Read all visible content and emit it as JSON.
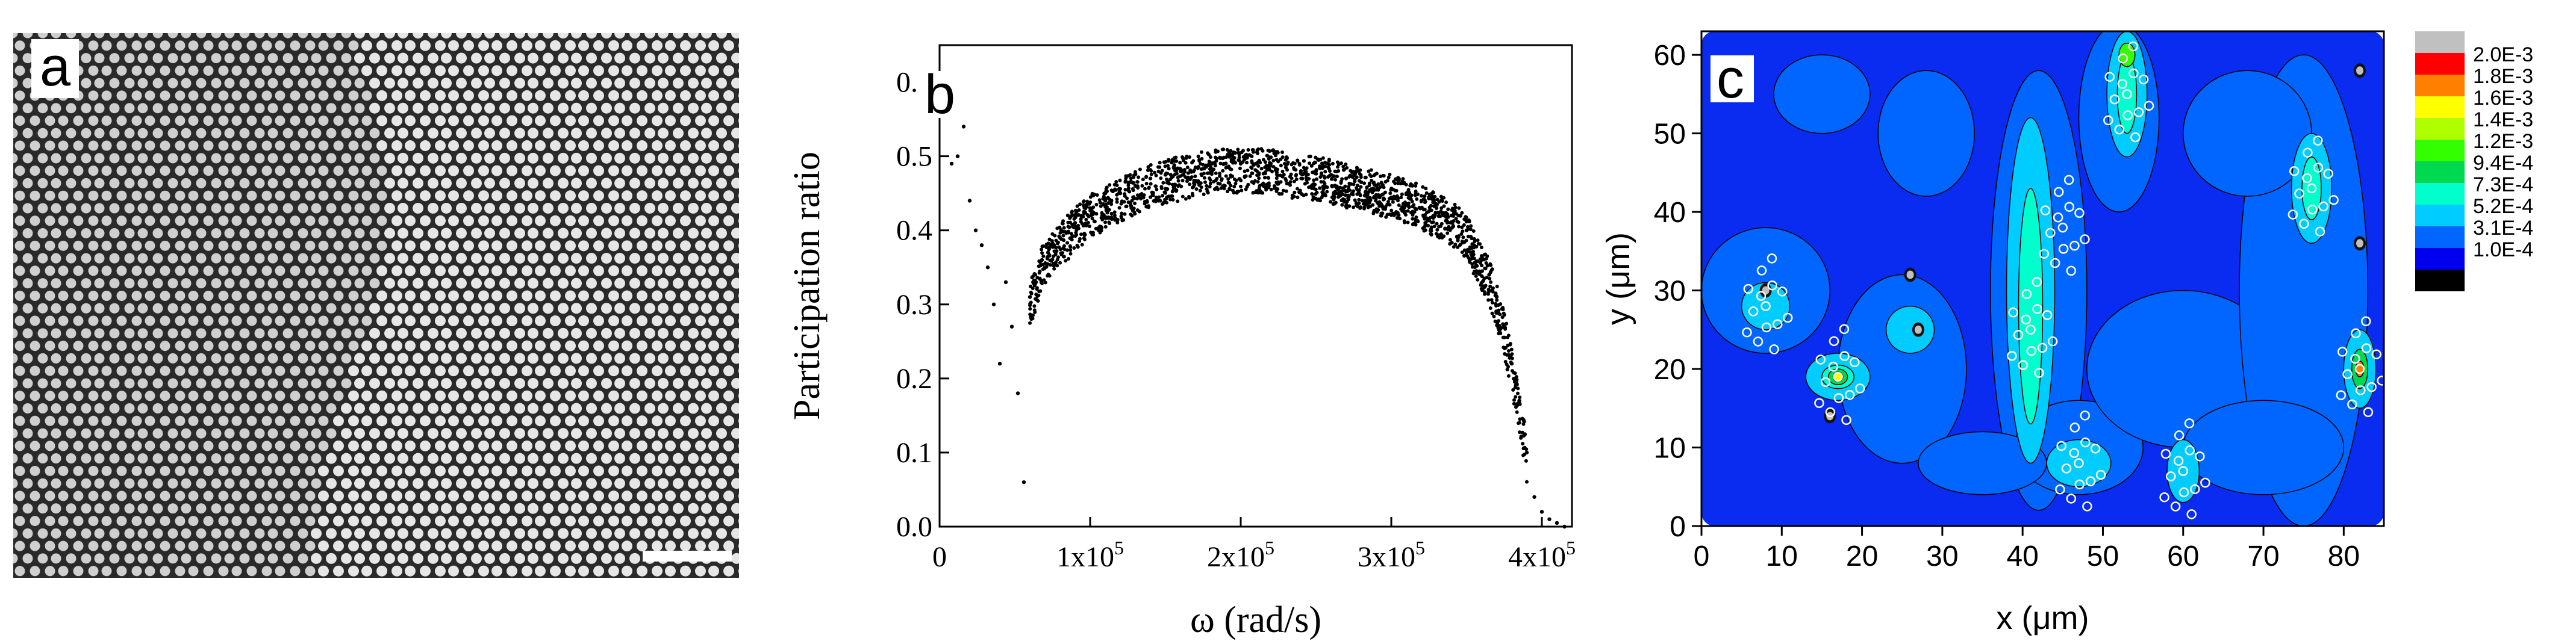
{
  "figure": {
    "panel_a": {
      "letter": "a",
      "image": "colloidal-crystal-micrograph"
    },
    "panel_b": {
      "letter": "b"
    },
    "panel_c": {
      "letter": "c"
    }
  },
  "colors": {
    "axis": "#000000",
    "points": "#000000",
    "contour_background": "#0a2bf0"
  },
  "chart_data": [
    {
      "type": "scatter",
      "panel": "b",
      "xlabel": "ω (rad/s)",
      "ylabel": "Participation ratio",
      "xlim": [
        0,
        420000
      ],
      "ylim": [
        0,
        0.65
      ],
      "xticks": [
        {
          "value": 0,
          "label": "0"
        },
        {
          "value": 100000,
          "label": "1x10",
          "sup": "5"
        },
        {
          "value": 200000,
          "label": "2x10",
          "sup": "5"
        },
        {
          "value": 300000,
          "label": "3x10",
          "sup": "5"
        },
        {
          "value": 400000,
          "label": "4x10",
          "sup": "5"
        }
      ],
      "yticks": [
        {
          "value": 0.0,
          "label": "0.0"
        },
        {
          "value": 0.1,
          "label": "0.1"
        },
        {
          "value": 0.2,
          "label": "0.2"
        },
        {
          "value": 0.3,
          "label": "0.3"
        },
        {
          "value": 0.4,
          "label": "0.4"
        },
        {
          "value": 0.5,
          "label": "0.5"
        },
        {
          "value": 0.6,
          "label": "0.6"
        }
      ],
      "grid": false,
      "series": [
        {
          "marker": "dot",
          "x": [
            8000,
            12000,
            16000,
            20000,
            24000,
            28000,
            32000,
            36000,
            40000,
            44000,
            48000,
            52000,
            56000,
            60000,
            64000,
            68000,
            72000,
            76000,
            80000,
            90000,
            100000,
            110000,
            120000,
            130000,
            140000,
            150000,
            160000,
            170000,
            180000,
            190000,
            200000,
            210000,
            220000,
            230000,
            240000,
            250000,
            260000,
            270000,
            280000,
            290000,
            300000,
            310000,
            320000,
            330000,
            340000,
            350000,
            355000,
            360000,
            365000,
            370000,
            375000,
            380000,
            385000,
            390000,
            395000,
            400000,
            405000,
            410000,
            415000
          ],
          "y": [
            0.49,
            0.5,
            0.54,
            0.44,
            0.4,
            0.38,
            0.35,
            0.3,
            0.22,
            0.33,
            0.27,
            0.18,
            0.06,
            0.31,
            0.33,
            0.36,
            0.37,
            0.38,
            0.39,
            0.41,
            0.43,
            0.44,
            0.45,
            0.46,
            0.47,
            0.475,
            0.48,
            0.485,
            0.49,
            0.49,
            0.49,
            0.49,
            0.49,
            0.485,
            0.48,
            0.48,
            0.475,
            0.47,
            0.465,
            0.46,
            0.455,
            0.45,
            0.44,
            0.43,
            0.42,
            0.4,
            0.38,
            0.36,
            0.34,
            0.31,
            0.27,
            0.22,
            0.17,
            0.1,
            0.04,
            0.02,
            0.01,
            0.005,
            0.0
          ]
        }
      ]
    },
    {
      "type": "heatmap",
      "panel": "c",
      "xlabel": "x (μm)",
      "ylabel": "y (μm)",
      "xlim": [
        0,
        85
      ],
      "ylim": [
        0,
        63
      ],
      "xticks": [
        0,
        10,
        20,
        30,
        40,
        50,
        60,
        70,
        80
      ],
      "yticks": [
        0,
        10,
        20,
        30,
        40,
        50,
        60
      ],
      "colorbar": {
        "levels": [
          {
            "label": "",
            "color": "#c0c0c0"
          },
          {
            "label": "2.0E-3",
            "color": "#ff0000"
          },
          {
            "label": "1.8E-3",
            "color": "#ff7f00"
          },
          {
            "label": "1.6E-3",
            "color": "#ffff00"
          },
          {
            "label": "1.4E-3",
            "color": "#b0ff00"
          },
          {
            "label": "1.2E-3",
            "color": "#33ff00"
          },
          {
            "label": "9.4E-4",
            "color": "#00d850"
          },
          {
            "label": "7.3E-4",
            "color": "#00ffcc"
          },
          {
            "label": "5.2E-4",
            "color": "#00ccff"
          },
          {
            "label": "3.1E-4",
            "color": "#0066ff"
          },
          {
            "label": "1.0E-4",
            "color": "#0000ee"
          },
          {
            "label": "",
            "color": "#000000"
          }
        ]
      },
      "marker_clusters": [
        {
          "x": 53,
          "y": 55,
          "color": "#ffffff"
        },
        {
          "x": 45,
          "y": 38,
          "color": "#ffffff"
        },
        {
          "x": 41,
          "y": 25,
          "color": "#ffffff"
        },
        {
          "x": 47,
          "y": 8,
          "color": "#ffffff"
        },
        {
          "x": 17,
          "y": 19,
          "color": "#ffffff"
        },
        {
          "x": 8,
          "y": 28,
          "color": "#ffffff"
        },
        {
          "x": 76,
          "y": 43,
          "color": "#ffffff"
        },
        {
          "x": 82,
          "y": 20,
          "color": "#ffffff"
        },
        {
          "x": 60,
          "y": 7,
          "color": "#ffffff"
        }
      ]
    }
  ]
}
